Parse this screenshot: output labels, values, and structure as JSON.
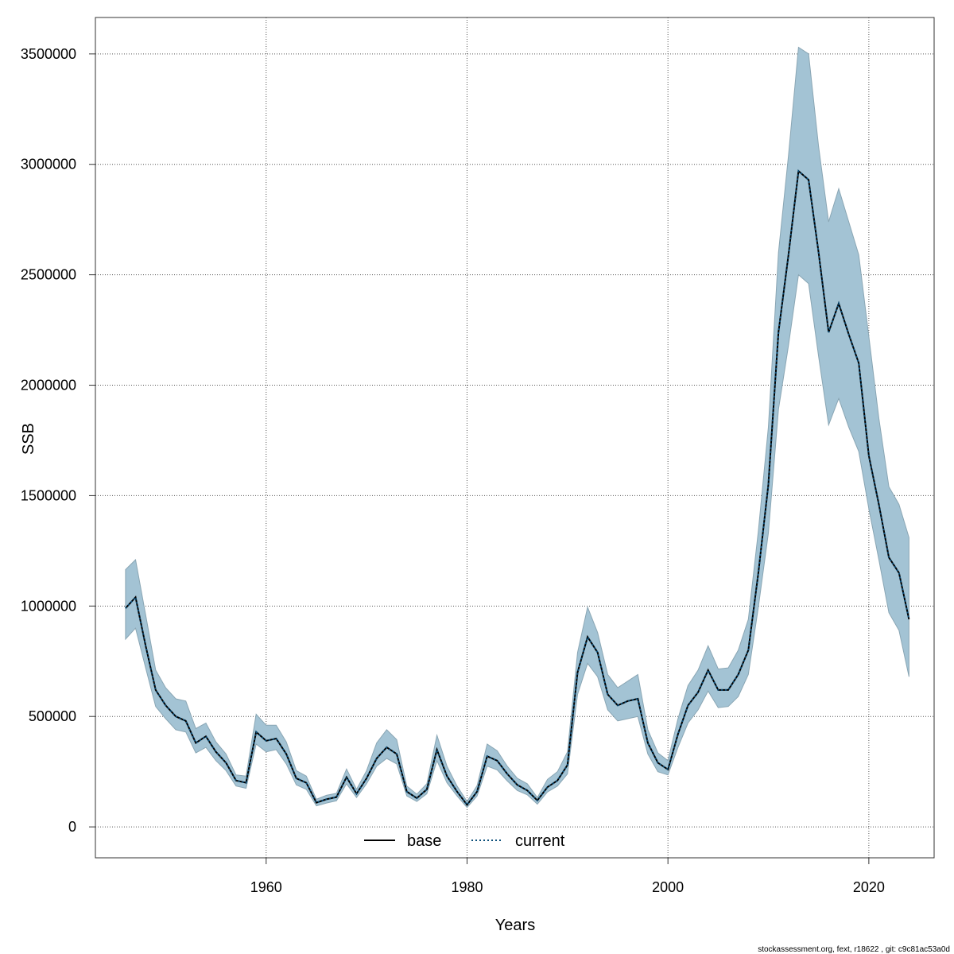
{
  "chart_data": {
    "type": "line",
    "title": "",
    "xlabel": "Years",
    "ylabel": "SSB",
    "xlim": [
      1943,
      2026.5
    ],
    "ylim": [
      -140000,
      3665000
    ],
    "xticks": [
      1960,
      1980,
      2000,
      2020
    ],
    "yticks": [
      0,
      500000,
      1000000,
      1500000,
      2000000,
      2500000,
      3000000,
      3500000
    ],
    "grid": true,
    "legend_position": "bottom-center",
    "band_color": "#a3c3d4",
    "band_edge_color": "#8aa6b4",
    "x": [
      1946,
      1947,
      1948,
      1949,
      1950,
      1951,
      1952,
      1953,
      1954,
      1955,
      1956,
      1957,
      1958,
      1959,
      1960,
      1961,
      1962,
      1963,
      1964,
      1965,
      1966,
      1967,
      1968,
      1969,
      1970,
      1971,
      1972,
      1973,
      1974,
      1975,
      1976,
      1977,
      1978,
      1979,
      1980,
      1981,
      1982,
      1983,
      1984,
      1985,
      1986,
      1987,
      1988,
      1989,
      1990,
      1991,
      1992,
      1993,
      1994,
      1995,
      1996,
      1997,
      1998,
      1999,
      2000,
      2001,
      2002,
      2003,
      2004,
      2005,
      2006,
      2007,
      2008,
      2009,
      2010,
      2011,
      2012,
      2013,
      2014,
      2015,
      2016,
      2017,
      2018,
      2019,
      2020,
      2021,
      2022,
      2023,
      2024
    ],
    "series": [
      {
        "name": "base",
        "color": "#000000",
        "dash": "solid",
        "values": [
          990000,
          1040000,
          820000,
          620000,
          550000,
          500000,
          480000,
          380000,
          410000,
          340000,
          290000,
          210000,
          200000,
          430000,
          390000,
          400000,
          330000,
          220000,
          200000,
          110000,
          125000,
          135000,
          225000,
          150000,
          220000,
          310000,
          360000,
          330000,
          160000,
          130000,
          170000,
          350000,
          230000,
          160000,
          100000,
          160000,
          320000,
          300000,
          240000,
          190000,
          165000,
          120000,
          180000,
          210000,
          280000,
          700000,
          860000,
          790000,
          600000,
          550000,
          570000,
          580000,
          380000,
          290000,
          260000,
          420000,
          550000,
          610000,
          710000,
          620000,
          620000,
          690000,
          800000,
          1150000,
          1550000,
          2240000,
          2590000,
          2970000,
          2930000,
          2600000,
          2240000,
          2370000,
          2230000,
          2100000,
          1680000,
          1460000,
          1220000,
          1150000,
          940000
        ]
      },
      {
        "name": "current",
        "color": "#0b4f7a",
        "dash": "dotted",
        "values": [
          990000,
          1040000,
          820000,
          620000,
          550000,
          500000,
          480000,
          380000,
          410000,
          340000,
          290000,
          210000,
          200000,
          430000,
          390000,
          400000,
          330000,
          220000,
          200000,
          110000,
          125000,
          135000,
          225000,
          150000,
          220000,
          310000,
          360000,
          330000,
          160000,
          130000,
          170000,
          350000,
          230000,
          160000,
          100000,
          160000,
          320000,
          300000,
          240000,
          190000,
          165000,
          120000,
          180000,
          210000,
          280000,
          700000,
          860000,
          790000,
          600000,
          550000,
          570000,
          580000,
          380000,
          290000,
          260000,
          420000,
          550000,
          610000,
          710000,
          620000,
          620000,
          690000,
          800000,
          1150000,
          1550000,
          2240000,
          2590000,
          2970000,
          2930000,
          2600000,
          2240000,
          2370000,
          2230000,
          2100000,
          1680000,
          1460000,
          1220000,
          1150000,
          940000
        ]
      }
    ],
    "band": {
      "lower": [
        850000,
        900000,
        720000,
        545000,
        490000,
        440000,
        430000,
        335000,
        360000,
        300000,
        255000,
        185000,
        175000,
        375000,
        340000,
        350000,
        285000,
        190000,
        170000,
        95000,
        108000,
        118000,
        195000,
        133000,
        195000,
        275000,
        310000,
        285000,
        140000,
        115000,
        150000,
        300000,
        200000,
        140000,
        88000,
        140000,
        275000,
        258000,
        208000,
        165000,
        145000,
        103000,
        158000,
        185000,
        240000,
        600000,
        740000,
        680000,
        530000,
        480000,
        490000,
        500000,
        330000,
        250000,
        235000,
        360000,
        470000,
        530000,
        615000,
        540000,
        545000,
        590000,
        690000,
        995000,
        1330000,
        1890000,
        2180000,
        2500000,
        2460000,
        2130000,
        1820000,
        1940000,
        1810000,
        1700000,
        1440000,
        1210000,
        970000,
        890000,
        680000
      ],
      "upper": [
        1165000,
        1210000,
        960000,
        710000,
        630000,
        580000,
        570000,
        445000,
        470000,
        385000,
        330000,
        235000,
        230000,
        510000,
        460000,
        460000,
        385000,
        255000,
        230000,
        125000,
        143000,
        152000,
        262000,
        170000,
        255000,
        380000,
        440000,
        395000,
        185000,
        148000,
        195000,
        415000,
        275000,
        185000,
        115000,
        187000,
        375000,
        345000,
        275000,
        220000,
        195000,
        133000,
        215000,
        250000,
        340000,
        790000,
        995000,
        880000,
        690000,
        630000,
        660000,
        690000,
        440000,
        335000,
        300000,
        490000,
        640000,
        710000,
        820000,
        715000,
        720000,
        800000,
        940000,
        1340000,
        1810000,
        2600000,
        3040000,
        3530000,
        3500000,
        3080000,
        2740000,
        2890000,
        2740000,
        2590000,
        2220000,
        1850000,
        1540000,
        1460000,
        1310000
      ]
    }
  },
  "legend": {
    "base_label": "base",
    "current_label": "current"
  },
  "footer_text": "stockassessment.org, fext, r18622 , git: c9c81ac53a0d"
}
